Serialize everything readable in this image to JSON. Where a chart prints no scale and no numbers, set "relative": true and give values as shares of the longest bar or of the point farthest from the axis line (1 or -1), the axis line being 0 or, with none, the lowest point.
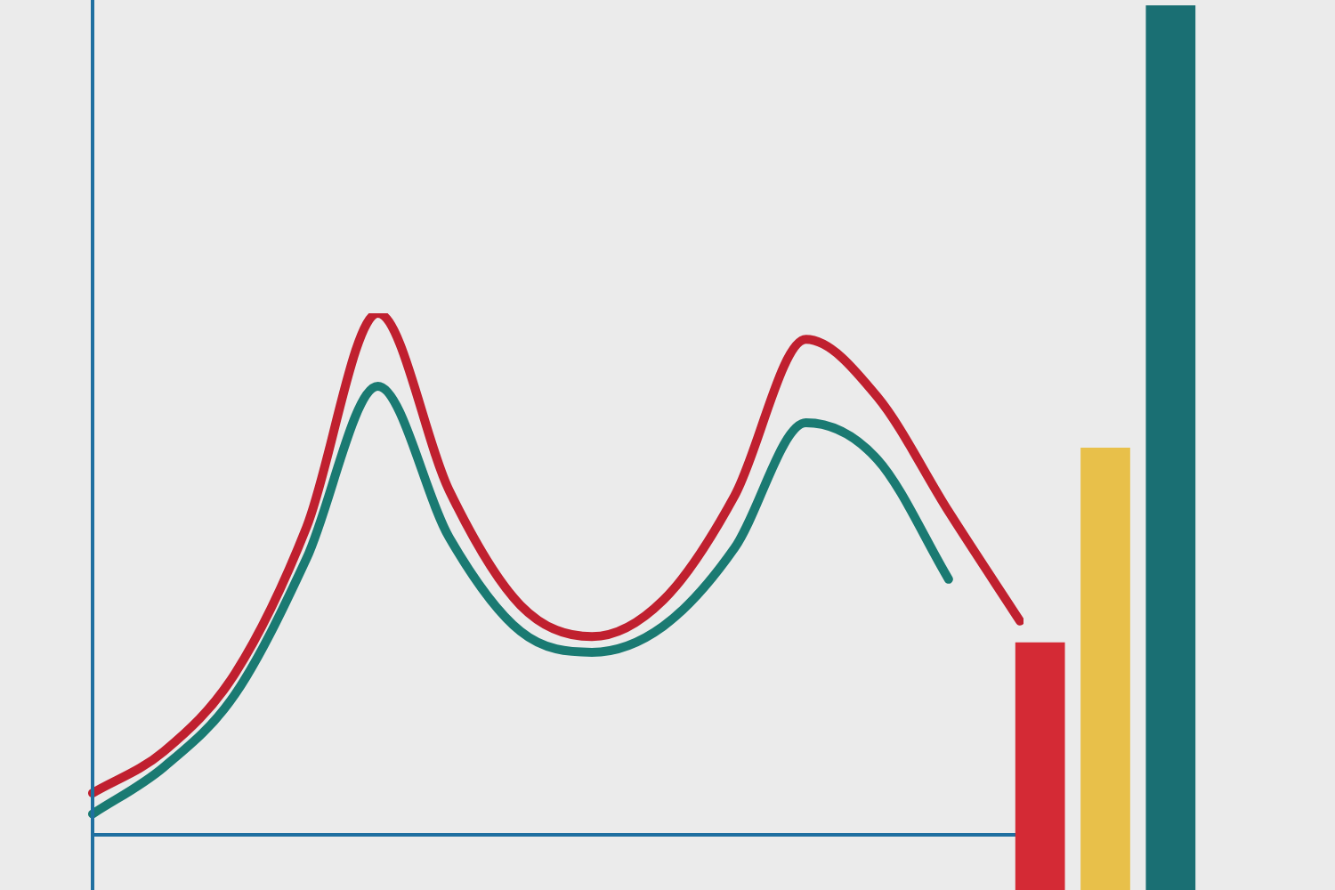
{
  "chart_data": [
    {
      "type": "line",
      "relative": true,
      "categories": [
        null,
        null,
        null,
        null,
        null,
        null,
        null,
        null,
        null,
        null,
        null,
        null,
        null,
        null
      ],
      "series": [
        {
          "color": "#c0202f",
          "values": [
            0.08,
            0.16,
            0.31,
            0.59,
            1,
            0.66,
            0.44,
            0.38,
            0.45,
            0.65,
            0.95,
            0.84,
            0.62,
            0.41
          ]
        },
        {
          "color": "#1a7a72",
          "values": [
            0.04,
            0.13,
            0.27,
            0.53,
            0.86,
            0.57,
            0.39,
            0.35,
            0.4,
            0.55,
            0.79,
            0.72,
            0.49,
            null
          ]
        }
      ],
      "marker": "none",
      "legend": false
    },
    {
      "type": "bar",
      "relative": true,
      "categories": [
        null,
        null,
        null
      ],
      "values": [
        0.28,
        0.5,
        1
      ],
      "colors": [
        "#d42a35",
        "#e8c04a",
        "#1a6f73"
      ],
      "legend": false
    }
  ]
}
